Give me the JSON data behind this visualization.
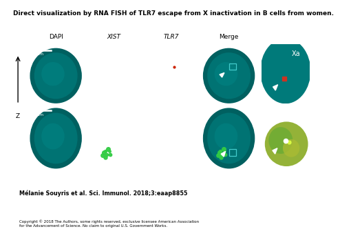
{
  "title": "Direct visualization by RNA FISH of TLR7 escape from X inactivation in B cells from women.",
  "col_labels": [
    "DAPI",
    "XIST",
    "TLR7",
    "Merge"
  ],
  "scale_bar_text": "5 μm",
  "citation": "Mélanie Souyris et al. Sci. Immunol. 2018;3:eaap8855",
  "copyright": "Copyright © 2018 The Authors, some rights reserved, exclusive licensee American Association\nfor the Advancement of Science. No claim to original U.S. Government Works.",
  "bg_color": "#ffffff",
  "panel_bg": "#000000",
  "nucleus_dark": "#006060",
  "nucleus_mid": "#008080",
  "nucleus_bright": "#009999",
  "xist_green": "#33dd44",
  "tlr7_red_dot": "#cc2200",
  "box_color": "#44cccc",
  "arrow_color": "#ffffff",
  "xa_inset_bg": "#007070",
  "xi_inset_bg": "#008080",
  "xi_yellow_blob": "#aacc44"
}
